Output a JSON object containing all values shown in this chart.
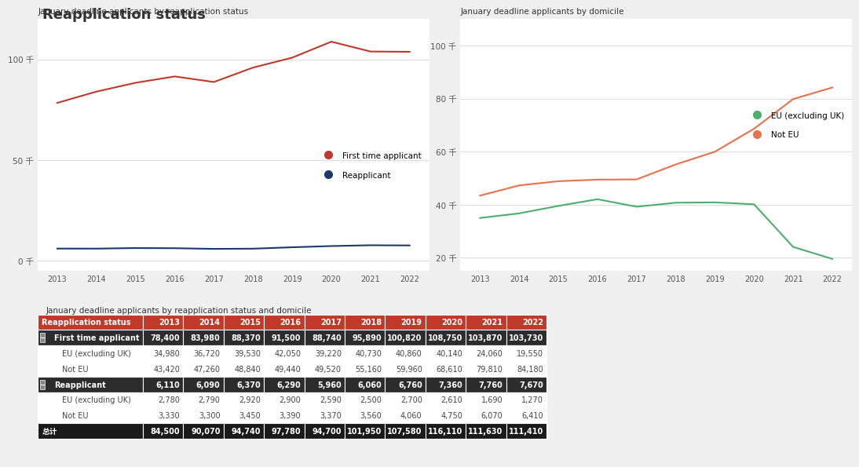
{
  "title": "Reapplication status",
  "title_color": "#333333",
  "background_color": "#f0f0f0",
  "plot_bg_color": "#ffffff",
  "years": [
    2013,
    2014,
    2015,
    2016,
    2017,
    2018,
    2019,
    2020,
    2021,
    2022
  ],
  "chart1_title": "January deadline applicants by reapplication status",
  "first_time": [
    78400,
    83980,
    88370,
    91500,
    88740,
    95890,
    100820,
    108750,
    103870,
    103730
  ],
  "reapplicant": [
    6110,
    6090,
    6370,
    6290,
    5960,
    6060,
    6760,
    7360,
    7760,
    7670
  ],
  "line1_color": "#c0392b",
  "line2_color": "#1a3a6b",
  "legend1_label": "First time applicant",
  "legend2_label": "Reapplicant",
  "chart1_yticks": [
    0,
    50000,
    100000
  ],
  "chart1_ytick_labels": [
    "0 千",
    "50 千",
    "100 千"
  ],
  "chart1_ylim": [
    -5000,
    120000
  ],
  "chart2_title": "January deadline applicants by domicile",
  "eu_excl_uk": [
    34980,
    36720,
    39530,
    42050,
    39220,
    40730,
    40860,
    40140,
    24060,
    19550
  ],
  "not_eu": [
    43420,
    47260,
    48840,
    49440,
    49520,
    55160,
    59960,
    68610,
    79810,
    84180
  ],
  "line3_color": "#4caf6e",
  "line4_color": "#e8714a",
  "legend3_label": "EU (excluding UK)",
  "legend4_label": "Not EU",
  "chart2_yticks": [
    20000,
    40000,
    60000,
    80000,
    100000
  ],
  "chart2_ytick_labels": [
    "20 千",
    "40 千",
    "60 千",
    "80 千",
    "100 千"
  ],
  "chart2_ylim": [
    15000,
    110000
  ],
  "table_title": "January deadline applicants by reapplication status and domicile",
  "table_header": [
    "Reapplication status",
    "2013",
    "2014",
    "2015",
    "2016",
    "2017",
    "2018",
    "2019",
    "2020",
    "2021",
    "2022"
  ],
  "table_header_bg": "#c0392b",
  "table_header_fg": "#ffffff",
  "row_first_time_values": [
    78400,
    83980,
    88370,
    91500,
    88740,
    95890,
    100820,
    108750,
    103870,
    103730
  ],
  "row_eu1_values": [
    34980,
    36720,
    39530,
    42050,
    39220,
    40730,
    40860,
    40140,
    24060,
    19550
  ],
  "row_noteu1_values": [
    43420,
    47260,
    48840,
    49440,
    49520,
    55160,
    59960,
    68610,
    79810,
    84180
  ],
  "row_reapplicant_values": [
    6110,
    6090,
    6370,
    6290,
    5960,
    6060,
    6760,
    7360,
    7760,
    7670
  ],
  "row_eu2_values": [
    2780,
    2790,
    2920,
    2900,
    2590,
    2500,
    2700,
    2610,
    1690,
    1270
  ],
  "row_noteu2_values": [
    3330,
    3300,
    3450,
    3390,
    3370,
    3560,
    4060,
    4750,
    6070,
    6410
  ],
  "row_total_values": [
    84500,
    90070,
    94740,
    97780,
    94700,
    101950,
    107580,
    116110,
    111630,
    111410
  ],
  "row_bold_bg": "#2c2c2c",
  "row_bold_fg": "#ffffff",
  "row_sub_bg": "#ffffff",
  "row_sub_fg": "#444444",
  "row_total_bg": "#1a1a1a",
  "row_total_fg": "#ffffff",
  "row_alt_bg": "#f2f2f2",
  "gridline_color": "#dddddd"
}
